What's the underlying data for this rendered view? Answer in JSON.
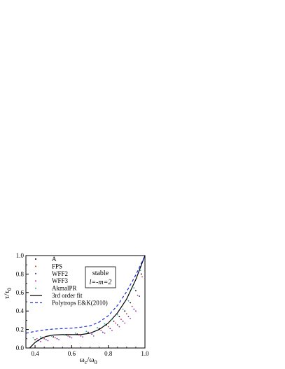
{
  "chart_data": {
    "type": "scatter",
    "xlim": [
      0.35,
      1.0
    ],
    "ylim": [
      0.0,
      1.0
    ],
    "x_ticks": [
      0.4,
      0.6,
      0.8,
      1.0
    ],
    "y_ticks": [
      0.0,
      0.2,
      0.4,
      0.6,
      0.8,
      1.0
    ],
    "x_tick_labels": [
      "0.4",
      "0.6",
      "0.8",
      "1.0"
    ],
    "y_tick_labels": [
      "0.0",
      "0.2",
      "0.4",
      "0.6",
      "0.8",
      "1.0"
    ],
    "xlabel": "ω_c/ω_0",
    "ylabel": "τ/τ_0",
    "grid": false,
    "legend_position": "top-left",
    "annotation": {
      "line1": "stable",
      "line2": "l=-m=2"
    },
    "series": [
      {
        "name": "A",
        "kind": "points",
        "color": "#000000",
        "x": [
          0.4,
          0.44,
          0.5,
          0.57,
          0.63,
          0.69,
          0.75,
          0.79,
          0.83,
          0.86,
          0.89,
          0.92,
          0.95,
          0.98
        ],
        "y": [
          0.09,
          0.11,
          0.12,
          0.14,
          0.15,
          0.17,
          0.21,
          0.25,
          0.29,
          0.34,
          0.4,
          0.49,
          0.62,
          0.8
        ]
      },
      {
        "name": "FPS",
        "kind": "points",
        "color": "#e03030",
        "x": [
          0.41,
          0.45,
          0.51,
          0.58,
          0.64,
          0.7,
          0.76,
          0.8,
          0.84,
          0.87,
          0.9,
          0.93,
          0.96,
          0.985
        ],
        "y": [
          0.1,
          0.1,
          0.11,
          0.13,
          0.14,
          0.16,
          0.19,
          0.23,
          0.27,
          0.31,
          0.37,
          0.45,
          0.57,
          0.77
        ]
      },
      {
        "name": "WFF2",
        "kind": "points",
        "color": "#3030c0",
        "x": [
          0.42,
          0.46,
          0.52,
          0.59,
          0.65,
          0.71,
          0.77,
          0.81,
          0.85,
          0.88,
          0.91,
          0.94,
          0.97
        ],
        "y": [
          0.08,
          0.09,
          0.1,
          0.12,
          0.13,
          0.15,
          0.17,
          0.21,
          0.25,
          0.29,
          0.34,
          0.42,
          0.56
        ]
      },
      {
        "name": "WFF3",
        "kind": "points",
        "color": "#b030b0",
        "x": [
          0.43,
          0.47,
          0.53,
          0.6,
          0.66,
          0.72,
          0.78,
          0.82,
          0.86,
          0.89,
          0.92,
          0.95
        ],
        "y": [
          0.07,
          0.08,
          0.09,
          0.11,
          0.12,
          0.13,
          0.16,
          0.19,
          0.23,
          0.27,
          0.32,
          0.4
        ]
      },
      {
        "name": "AkmalPR",
        "kind": "points",
        "color": "#20a0a0",
        "x": [
          0.39,
          0.43,
          0.49,
          0.56,
          0.62,
          0.68,
          0.74,
          0.78,
          0.82,
          0.85,
          0.88,
          0.91,
          0.94,
          0.975
        ],
        "y": [
          0.11,
          0.12,
          0.13,
          0.14,
          0.16,
          0.18,
          0.22,
          0.26,
          0.31,
          0.36,
          0.42,
          0.51,
          0.65,
          0.84
        ]
      },
      {
        "name": "3rd order fit",
        "kind": "line",
        "color": "#000000",
        "dash": "solid",
        "x": [
          0.37,
          0.4,
          0.43,
          0.46,
          0.5,
          0.55,
          0.6,
          0.65,
          0.7,
          0.75,
          0.8,
          0.85,
          0.9,
          0.95,
          1.0
        ],
        "y": [
          0.0,
          0.06,
          0.1,
          0.125,
          0.14,
          0.145,
          0.145,
          0.145,
          0.16,
          0.2,
          0.27,
          0.38,
          0.53,
          0.74,
          1.0
        ]
      },
      {
        "name": "Polytrops E&K(2010)",
        "kind": "line",
        "color": "#2030d0",
        "dash": "dashed",
        "x": [
          0.35,
          0.4,
          0.45,
          0.5,
          0.55,
          0.6,
          0.65,
          0.7,
          0.75,
          0.8,
          0.85,
          0.9,
          0.95,
          1.0
        ],
        "y": [
          0.16,
          0.18,
          0.195,
          0.205,
          0.21,
          0.215,
          0.225,
          0.24,
          0.28,
          0.35,
          0.46,
          0.61,
          0.79,
          1.0
        ]
      }
    ]
  }
}
